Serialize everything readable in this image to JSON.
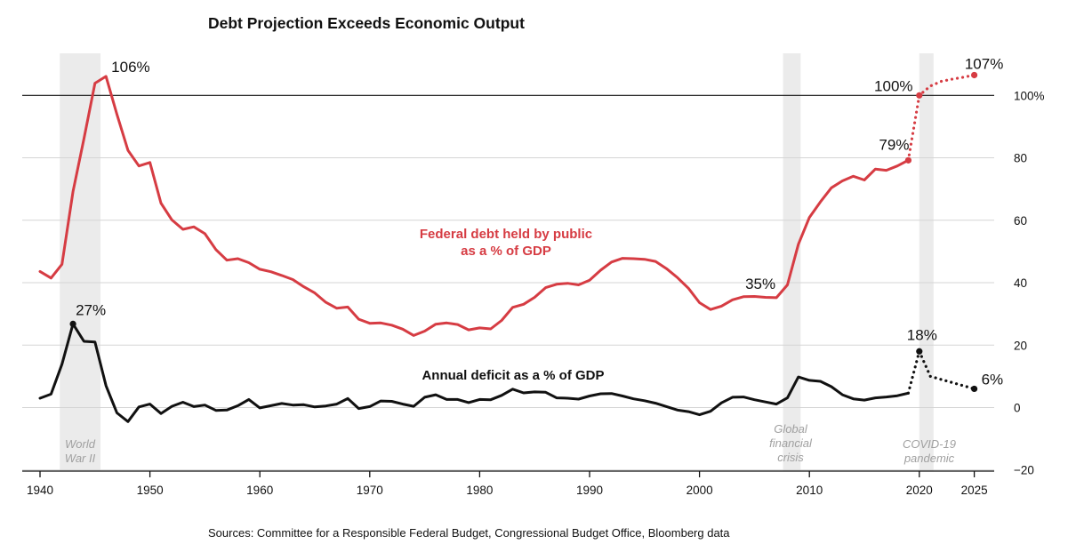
{
  "chart_data": {
    "type": "line",
    "title": "Debt Projection Exceeds Economic Output",
    "source": "Sources: Committee for a Responsible Federal Budget, Congressional Budget Office, Bloomberg data",
    "xlim": [
      1939,
      2027
    ],
    "ylim": [
      -20,
      110
    ],
    "x_ticks": [
      {
        "value": 1940,
        "label": "1940"
      },
      {
        "value": 1950,
        "label": "1950"
      },
      {
        "value": 1960,
        "label": "1960"
      },
      {
        "value": 1970,
        "label": "1970"
      },
      {
        "value": 1980,
        "label": "1980"
      },
      {
        "value": 1990,
        "label": "1990"
      },
      {
        "value": 2000,
        "label": "2000"
      },
      {
        "value": 2010,
        "label": "2010"
      },
      {
        "value": 2020,
        "label": "2020"
      },
      {
        "value": 2025,
        "label": "2025"
      }
    ],
    "y_ticks": [
      {
        "value": -20,
        "label": "−20"
      },
      {
        "value": 0,
        "label": "0"
      },
      {
        "value": 20,
        "label": "20"
      },
      {
        "value": 40,
        "label": "40"
      },
      {
        "value": 60,
        "label": "60"
      },
      {
        "value": 80,
        "label": "80"
      },
      {
        "value": 100,
        "label": "100%"
      }
    ],
    "reference_line": 100,
    "grid": true,
    "shaded_periods": [
      {
        "start": 1941.8,
        "end": 1945.5,
        "label_lines": [
          "World",
          "War II"
        ]
      },
      {
        "start": 2007.6,
        "end": 2009.2,
        "label_lines": [
          "Global",
          "financial",
          "crisis"
        ]
      },
      {
        "start": 2020.0,
        "end": 2020.5,
        "label_lines": [
          "COVID-19",
          "pandemic"
        ]
      }
    ],
    "series": [
      {
        "key": "debt",
        "name_lines": [
          "Federal debt held by public",
          "as a % of GDP"
        ],
        "color": "#d63c43",
        "x": [
          1940,
          1941,
          1942,
          1943,
          1944,
          1945,
          1946,
          1947,
          1948,
          1949,
          1950,
          1951,
          1952,
          1953,
          1954,
          1955,
          1956,
          1957,
          1958,
          1959,
          1960,
          1961,
          1962,
          1963,
          1964,
          1965,
          1966,
          1967,
          1968,
          1969,
          1970,
          1971,
          1972,
          1973,
          1974,
          1975,
          1976,
          1977,
          1978,
          1979,
          1980,
          1981,
          1982,
          1983,
          1984,
          1985,
          1986,
          1987,
          1988,
          1989,
          1990,
          1991,
          1992,
          1993,
          1994,
          1995,
          1996,
          1997,
          1998,
          1999,
          2000,
          2001,
          2002,
          2003,
          2004,
          2005,
          2006,
          2007,
          2008,
          2009,
          2010,
          2011,
          2012,
          2013,
          2014,
          2015,
          2016,
          2017,
          2018,
          2019
        ],
        "values": [
          43.6,
          41.5,
          45.9,
          69.2,
          86.1,
          103.9,
          106.1,
          93.9,
          82.4,
          77.4,
          78.5,
          65.5,
          60.1,
          57.1,
          57.9,
          55.7,
          50.6,
          47.2,
          47.7,
          46.4,
          44.3,
          43.5,
          42.3,
          41.0,
          38.7,
          36.7,
          33.7,
          31.8,
          32.2,
          28.3,
          27.0,
          27.1,
          26.4,
          25.1,
          23.1,
          24.5,
          26.7,
          27.1,
          26.6,
          24.9,
          25.5,
          25.2,
          27.9,
          32.1,
          33.1,
          35.3,
          38.4,
          39.5,
          39.8,
          39.3,
          40.8,
          44.0,
          46.6,
          47.8,
          47.7,
          47.5,
          46.8,
          44.5,
          41.6,
          38.2,
          33.6,
          31.4,
          32.5,
          34.5,
          35.5,
          35.6,
          35.3,
          35.2,
          39.3,
          52.3,
          60.9,
          65.9,
          70.4,
          72.6,
          74.1,
          72.9,
          76.4,
          76.0,
          77.4,
          79.2
        ]
      },
      {
        "key": "debt_projection",
        "color": "#d63c43",
        "dotted": true,
        "x": [
          2019,
          2020,
          2021,
          2022,
          2023,
          2024,
          2025
        ],
        "values": [
          79.2,
          100.0,
          103.0,
          104.5,
          105.2,
          105.8,
          106.5
        ]
      },
      {
        "key": "deficit",
        "name_lines": [
          "Annual deficit as a % of GDP"
        ],
        "color": "#111111",
        "x": [
          1940,
          1941,
          1942,
          1943,
          1944,
          1945,
          1946,
          1947,
          1948,
          1949,
          1950,
          1951,
          1952,
          1953,
          1954,
          1955,
          1956,
          1957,
          1958,
          1959,
          1960,
          1961,
          1962,
          1963,
          1964,
          1965,
          1966,
          1967,
          1968,
          1969,
          1970,
          1971,
          1972,
          1973,
          1974,
          1975,
          1976,
          1977,
          1978,
          1979,
          1980,
          1981,
          1982,
          1983,
          1984,
          1985,
          1986,
          1987,
          1988,
          1989,
          1990,
          1991,
          1992,
          1993,
          1994,
          1995,
          1996,
          1997,
          1998,
          1999,
          2000,
          2001,
          2002,
          2003,
          2004,
          2005,
          2006,
          2007,
          2008,
          2009,
          2010,
          2011,
          2012,
          2013,
          2014,
          2015,
          2016,
          2017,
          2018,
          2019
        ],
        "values": [
          3.0,
          4.3,
          13.9,
          26.8,
          21.2,
          21.0,
          7.0,
          -1.7,
          -4.5,
          0.2,
          1.1,
          -1.9,
          0.4,
          1.7,
          0.3,
          0.8,
          -0.9,
          -0.8,
          0.6,
          2.6,
          -0.1,
          0.6,
          1.3,
          0.8,
          0.9,
          0.2,
          0.5,
          1.1,
          2.9,
          -0.3,
          0.3,
          2.1,
          2.0,
          1.1,
          0.4,
          3.3,
          4.1,
          2.6,
          2.6,
          1.6,
          2.6,
          2.5,
          3.9,
          5.9,
          4.7,
          5.0,
          4.9,
          3.1,
          3.0,
          2.7,
          3.7,
          4.4,
          4.5,
          3.7,
          2.8,
          2.2,
          1.4,
          0.3,
          -0.8,
          -1.3,
          -2.3,
          -1.2,
          1.5,
          3.3,
          3.4,
          2.5,
          1.8,
          1.1,
          3.1,
          9.8,
          8.7,
          8.4,
          6.7,
          4.1,
          2.8,
          2.4,
          3.1,
          3.4,
          3.8,
          4.6
        ]
      },
      {
        "key": "deficit_projection",
        "color": "#111111",
        "dotted": true,
        "x": [
          2019,
          2020,
          2021,
          2022,
          2023,
          2024,
          2025
        ],
        "values": [
          4.6,
          18.0,
          10.0,
          9.0,
          8.0,
          7.0,
          6.0
        ]
      }
    ],
    "annotations": [
      {
        "series": "debt",
        "x": 1946,
        "y": 106.1,
        "text": "106%"
      },
      {
        "series": "debt",
        "x": 2007,
        "y": 35.2,
        "text": "35%"
      },
      {
        "series": "debt",
        "x": 2019,
        "y": 79.2,
        "text": "79%"
      },
      {
        "series": "debt",
        "x": 2020,
        "y": 100.0,
        "text": "100%"
      },
      {
        "series": "debt",
        "x": 2025,
        "y": 106.5,
        "text": "107%"
      },
      {
        "series": "deficit",
        "x": 1943,
        "y": 26.8,
        "text": "27%"
      },
      {
        "series": "deficit",
        "x": 2020,
        "y": 18.0,
        "text": "18%"
      },
      {
        "series": "deficit",
        "x": 2025,
        "y": 6.0,
        "text": "6%"
      }
    ]
  }
}
